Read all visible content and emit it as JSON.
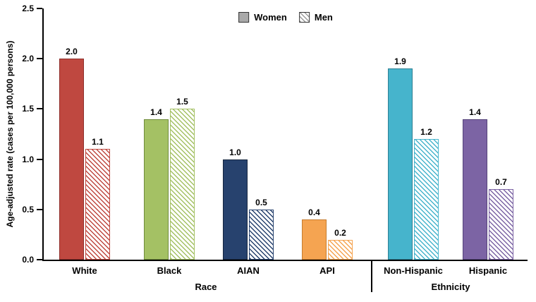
{
  "chart_data": {
    "type": "bar",
    "title": "",
    "ylabel": "Age-adjusted rate (cases per 100,000 persons)",
    "xlabel": "",
    "ylim": [
      0,
      2.5
    ],
    "yticks": [
      0,
      0.5,
      1,
      1.5,
      2,
      2.5
    ],
    "grid": "off",
    "legend_position": "top-center",
    "legend": {
      "women": "Women",
      "men": "Men",
      "swatch_color": "#a9a9a9"
    },
    "x_sections": {
      "race": "Race",
      "ethnicity": "Ethnicity"
    },
    "categories": [
      "White",
      "Black",
      "AIAN",
      "API",
      "Non-Hispanic",
      "Hispanic"
    ],
    "series": [
      {
        "name": "Women",
        "style": "solid",
        "values": [
          2.0,
          1.4,
          1.0,
          0.4,
          1.9,
          1.4
        ]
      },
      {
        "name": "Men",
        "style": "hatched",
        "values": [
          1.1,
          1.5,
          0.5,
          0.2,
          1.2,
          0.7
        ]
      }
    ],
    "groups": [
      {
        "label": "White",
        "section": "Race",
        "women": 2.0,
        "men": 1.1,
        "color": "#BF4840",
        "edge": "#8F2F2B"
      },
      {
        "label": "Black",
        "section": "Race",
        "women": 1.4,
        "men": 1.5,
        "color": "#A4C164",
        "edge": "#6F8C3C"
      },
      {
        "label": "AIAN",
        "section": "Race",
        "women": 1.0,
        "men": 0.5,
        "color": "#27426E",
        "edge": "#16263F"
      },
      {
        "label": "API",
        "section": "Race",
        "women": 0.4,
        "men": 0.2,
        "color": "#F5A451",
        "edge": "#C67C2E"
      },
      {
        "label": "Non-Hispanic",
        "section": "Ethnicity",
        "women": 1.9,
        "men": 1.2,
        "color": "#46B4CC",
        "edge": "#2D7F93"
      },
      {
        "label": "Hispanic",
        "section": "Ethnicity",
        "women": 1.4,
        "men": 0.7,
        "color": "#7C64A4",
        "edge": "#55447A"
      }
    ]
  }
}
